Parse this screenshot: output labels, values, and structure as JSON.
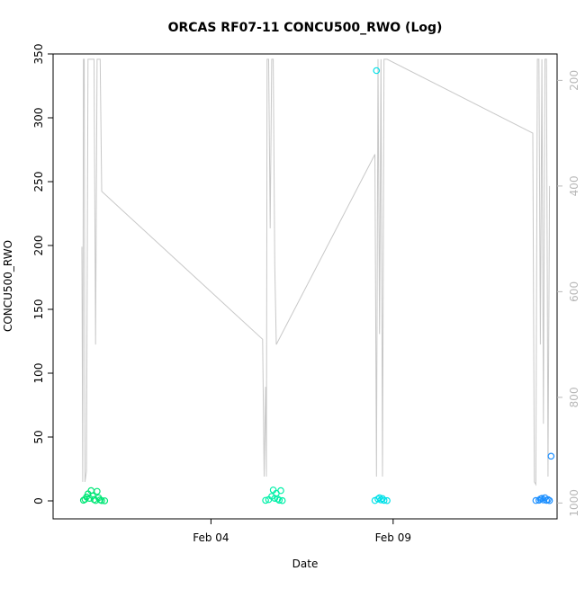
{
  "chart_data": {
    "type": "scatter",
    "title": "ORCAS RF07-11 CONCU500_RWO (Log)",
    "xlabel": "Date",
    "ylabel": "CONCU500_RWO",
    "x_ticks": [
      "Feb 04",
      "Feb 09"
    ],
    "x_tick_dates": [
      "2016-02-04",
      "2016-02-09"
    ],
    "xlim": [
      "2016-01-30T16:00",
      "2016-02-13T12:00"
    ],
    "ylim": [
      0,
      350
    ],
    "y_ticks": [
      0,
      50,
      100,
      150,
      200,
      250,
      300,
      350
    ],
    "y2_ticks": [
      200,
      400,
      600,
      800,
      1000
    ],
    "y2lim": [
      150,
      1030
    ],
    "grid": false,
    "colors": {
      "rf07": "#00e676",
      "rf08": "#00f0a8",
      "rf09": "#00e0e8",
      "rf10": "#1e90ff",
      "pressure_line": "#c8c8c8",
      "outlier": "#2ad0f0"
    },
    "series": [
      {
        "color": "#00e676",
        "points": [
          [
            "2016-01-31T12:00",
            0.5
          ],
          [
            "2016-01-31T13:00",
            1.2
          ],
          [
            "2016-01-31T14:00",
            3.0
          ],
          [
            "2016-01-31T15:00",
            5.5
          ],
          [
            "2016-01-31T16:00",
            2.0
          ],
          [
            "2016-01-31T17:00",
            8.0
          ],
          [
            "2016-01-31T18:00",
            4.0
          ],
          [
            "2016-01-31T19:00",
            1.0
          ],
          [
            "2016-01-31T20:00",
            0.3
          ],
          [
            "2016-01-31T21:00",
            7.5
          ],
          [
            "2016-01-31T22:00",
            2.5
          ],
          [
            "2016-01-31T23:00",
            0.8
          ],
          [
            "2016-02-01T00:00",
            0.2
          ],
          [
            "2016-02-01T02:00",
            0.1
          ]
        ]
      },
      {
        "color": "#00f0a8",
        "points": [
          [
            "2016-02-05T12:00",
            0.4
          ],
          [
            "2016-02-05T14:00",
            1.0
          ],
          [
            "2016-02-05T16:00",
            3.5
          ],
          [
            "2016-02-05T17:00",
            8.5
          ],
          [
            "2016-02-05T18:00",
            2.0
          ],
          [
            "2016-02-05T19:00",
            6.0
          ],
          [
            "2016-02-05T20:00",
            1.5
          ],
          [
            "2016-02-05T21:00",
            0.5
          ],
          [
            "2016-02-05T22:00",
            8.0
          ],
          [
            "2016-02-05T23:00",
            0.2
          ]
        ]
      },
      {
        "color": "#00e0e8",
        "points": [
          [
            "2016-02-08T12:00",
            0.3
          ],
          [
            "2016-02-08T14:00",
            1.5
          ],
          [
            "2016-02-08T15:00",
            2.5
          ],
          [
            "2016-02-08T16:00",
            0.8
          ],
          [
            "2016-02-08T17:00",
            1.8
          ],
          [
            "2016-02-08T18:00",
            0.4
          ],
          [
            "2016-02-08T20:00",
            0.2
          ],
          [
            "2016-02-08T13:00",
            337
          ]
        ]
      },
      {
        "color": "#1e90ff",
        "points": [
          [
            "2016-02-12T22:00",
            0.3
          ],
          [
            "2016-02-13T00:00",
            0.5
          ],
          [
            "2016-02-13T01:00",
            1.5
          ],
          [
            "2016-02-13T02:00",
            2.0
          ],
          [
            "2016-02-13T03:00",
            0.8
          ],
          [
            "2016-02-13T04:00",
            2.5
          ],
          [
            "2016-02-13T05:00",
            0.4
          ],
          [
            "2016-02-13T06:00",
            1.0
          ],
          [
            "2016-02-13T07:00",
            0.2
          ],
          [
            "2016-02-13T08:00",
            35
          ]
        ]
      }
    ],
    "pressure_line": {
      "color": "#c8c8c8",
      "points": [
        [
          "2016-01-31T11:00",
          515
        ],
        [
          "2016-01-31T11:30",
          960
        ],
        [
          "2016-01-31T12:00",
          160
        ],
        [
          "2016-01-31T12:30",
          160
        ],
        [
          "2016-01-31T13:00",
          960
        ],
        [
          "2016-01-31T14:00",
          940
        ],
        [
          "2016-01-31T15:00",
          160
        ],
        [
          "2016-01-31T16:00",
          160
        ],
        [
          "2016-01-31T17:00",
          160
        ],
        [
          "2016-01-31T18:00",
          160
        ],
        [
          "2016-01-31T19:00",
          160
        ],
        [
          "2016-01-31T20:00",
          700
        ],
        [
          "2016-01-31T21:00",
          160
        ],
        [
          "2016-01-31T22:00",
          160
        ],
        [
          "2016-01-31T23:00",
          160
        ],
        [
          "2016-02-01T00:00",
          410
        ],
        [
          "2016-02-05T10:00",
          690
        ],
        [
          "2016-02-05T11:00",
          950
        ],
        [
          "2016-02-05T12:00",
          780
        ],
        [
          "2016-02-05T12:30",
          950
        ],
        [
          "2016-02-05T13:00",
          160
        ],
        [
          "2016-02-05T14:00",
          160
        ],
        [
          "2016-02-05T15:00",
          480
        ],
        [
          "2016-02-05T16:00",
          160
        ],
        [
          "2016-02-05T17:00",
          160
        ],
        [
          "2016-02-05T18:00",
          550
        ],
        [
          "2016-02-05T19:00",
          700
        ],
        [
          "2016-02-08T12:00",
          340
        ],
        [
          "2016-02-08T13:00",
          950
        ],
        [
          "2016-02-08T14:00",
          160
        ],
        [
          "2016-02-08T15:00",
          680
        ],
        [
          "2016-02-08T16:00",
          160
        ],
        [
          "2016-02-08T17:00",
          950
        ],
        [
          "2016-02-08T18:00",
          160
        ],
        [
          "2016-02-08T19:00",
          160
        ],
        [
          "2016-02-08T20:00",
          160
        ],
        [
          "2016-02-12T20:00",
          300
        ],
        [
          "2016-02-12T21:00",
          960
        ],
        [
          "2016-02-12T22:00",
          965
        ],
        [
          "2016-02-12T23:00",
          160
        ],
        [
          "2016-02-13T00:00",
          160
        ],
        [
          "2016-02-13T01:00",
          700
        ],
        [
          "2016-02-13T02:00",
          160
        ],
        [
          "2016-02-13T03:00",
          850
        ],
        [
          "2016-02-13T04:00",
          160
        ],
        [
          "2016-02-13T05:00",
          160
        ],
        [
          "2016-02-13T06:00",
          950
        ],
        [
          "2016-02-13T07:00",
          400
        ]
      ]
    }
  }
}
